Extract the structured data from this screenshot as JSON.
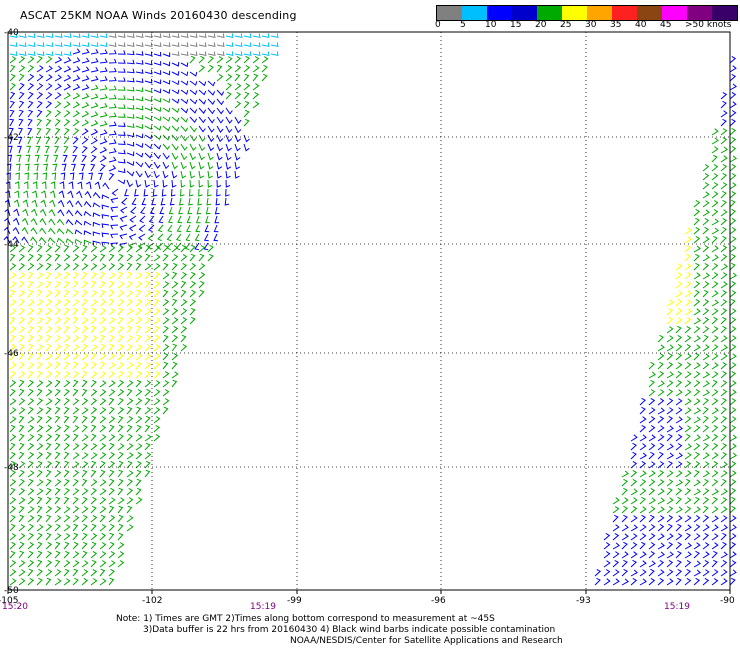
{
  "title": "ASCAT 25KM NOAA Winds 20160430 descending",
  "colorbar": {
    "colors": [
      "#808080",
      "#00bfff",
      "#0000ff",
      "#0000cd",
      "#00aa00",
      "#ffff00",
      "#ffa500",
      "#ff2020",
      "#8b4513",
      "#ff00ff",
      "#800080",
      "#3a006a"
    ],
    "labels": [
      "0",
      "5",
      "10",
      "15",
      "20",
      "25",
      "30",
      "35",
      "40",
      "45",
      ">50 knots"
    ]
  },
  "map": {
    "lat_labels": [
      "-40",
      "-42",
      "-44",
      "-46",
      "-48",
      "-50"
    ],
    "lon_labels": [
      "-105",
      "-102",
      "-99",
      "-96",
      "-93",
      "-90"
    ]
  },
  "times": {
    "left": "15:20",
    "mid": "15:19",
    "right": "15:19"
  },
  "notes": {
    "line1": "Note: 1) Times are GMT 2)Times along bottom correspond to measurement at ~45S",
    "line2": "3)Data buffer is 22 hrs from 20160430 4) Black wind barbs indicate possible contamination",
    "line3": "NOAA/NESDIS/Center for Satellite Applications and Research"
  }
}
